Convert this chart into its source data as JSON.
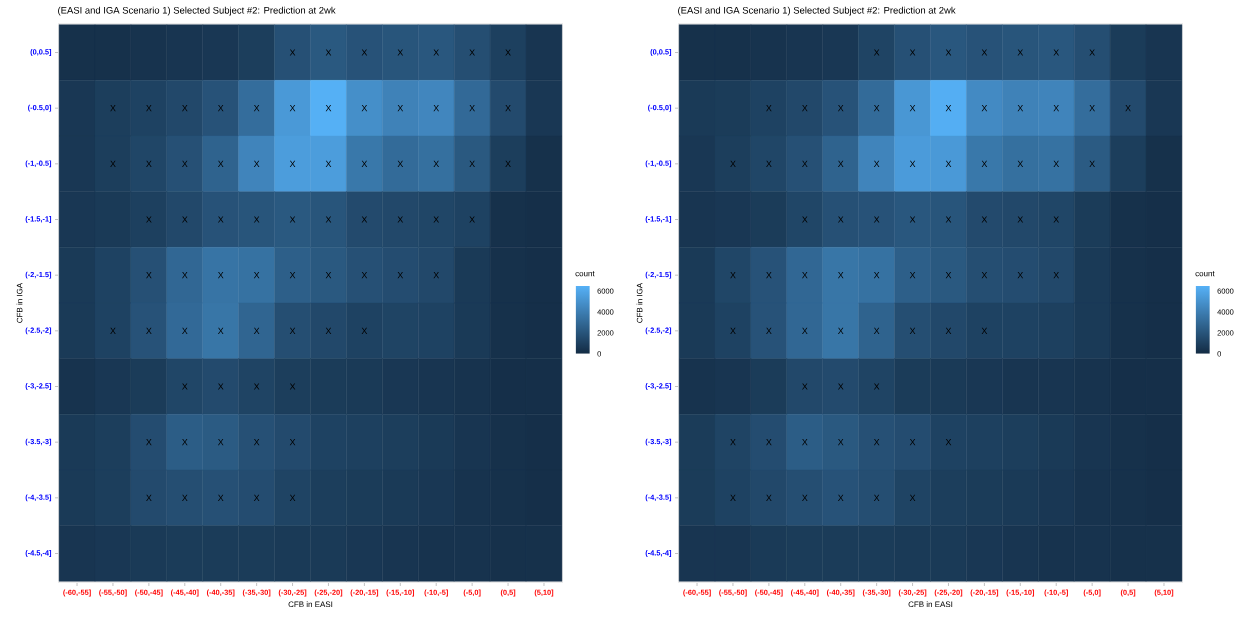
{
  "chart_data": [
    {
      "type": "heatmap",
      "title": "(EASI and IGA Scenario 1) Selected Subject #2: Prediction at 2wk",
      "xlabel": "CFB in EASI",
      "ylabel": "CFB in IGA",
      "clabel": "count",
      "categories": [
        "(-60,-55]",
        "(-55,-50]",
        "(-50,-45]",
        "(-45,-40]",
        "(-40,-35]",
        "(-35,-30]",
        "(-30,-25]",
        "(-25,-20]",
        "(-20,-15]",
        "(-15,-10]",
        "(-10,-5]",
        "(-5,0]",
        "(0,5]",
        "(5,10]"
      ],
      "y_categories": [
        "(0,0.5]",
        "(-0.5,0]",
        "(-1,-0.5]",
        "(-1.5,-1]",
        "(-2,-1.5]",
        "(-2.5,-2]",
        "(-3,-2.5]",
        "(-3.5,-3]",
        "(-4,-3.5]",
        "(-4.5,-4]"
      ],
      "cells": [
        [
          300,
          300,
          400,
          500,
          600,
          900,
          1800,
          2200,
          1900,
          2000,
          2100,
          1700,
          1000,
          500
        ],
        [
          600,
          900,
          1100,
          1400,
          1900,
          3200,
          5300,
          6400,
          4800,
          4200,
          4400,
          3000,
          1500,
          600
        ],
        [
          600,
          900,
          1300,
          1800,
          2700,
          4300,
          5500,
          5500,
          3700,
          3100,
          3300,
          2200,
          900,
          300
        ],
        [
          600,
          700,
          1000,
          1400,
          1900,
          2000,
          2200,
          2000,
          1500,
          1400,
          1300,
          1100,
          300,
          200
        ],
        [
          700,
          1100,
          1800,
          2900,
          3500,
          3400,
          2500,
          2200,
          1800,
          1600,
          1400,
          700,
          300,
          200
        ],
        [
          700,
          1100,
          1900,
          3000,
          3600,
          2800,
          1700,
          1400,
          1100,
          1200,
          1100,
          700,
          300,
          200
        ],
        [
          400,
          600,
          800,
          1300,
          1500,
          1200,
          900,
          800,
          700,
          600,
          500,
          400,
          200,
          200
        ],
        [
          700,
          900,
          1600,
          2400,
          2300,
          1800,
          1500,
          1100,
          1000,
          900,
          700,
          500,
          300,
          200
        ],
        [
          700,
          900,
          1500,
          1700,
          1800,
          1600,
          1200,
          900,
          800,
          700,
          600,
          400,
          300,
          200
        ],
        [
          500,
          600,
          700,
          800,
          800,
          800,
          700,
          700,
          600,
          500,
          400,
          400,
          300,
          300
        ]
      ],
      "cell_labels": [
        [
          null,
          null,
          null,
          null,
          null,
          null,
          "X",
          "X",
          "X",
          "X",
          "X",
          "X",
          "X",
          null
        ],
        [
          null,
          "X",
          "X",
          "X",
          "X",
          "X",
          "X",
          "X",
          "X",
          "X",
          "X",
          "X",
          "X",
          null
        ],
        [
          null,
          "X",
          "X",
          "X",
          "X",
          "X",
          "X",
          "X",
          "X",
          "X",
          "X",
          "X",
          "X",
          null
        ],
        [
          null,
          null,
          "X",
          "X",
          "X",
          "X",
          "X",
          "X",
          "X",
          "X",
          "X",
          "X",
          null,
          null
        ],
        [
          null,
          null,
          "X",
          "X",
          "X",
          "X",
          "X",
          "X",
          "X",
          "X",
          "X",
          null,
          null,
          null
        ],
        [
          null,
          "X",
          "X",
          "X",
          "X",
          "X",
          "X",
          "X",
          "X",
          null,
          null,
          null,
          null,
          null
        ],
        [
          null,
          null,
          null,
          "X",
          "X",
          "X",
          "X",
          null,
          null,
          null,
          null,
          null,
          null,
          null
        ],
        [
          null,
          null,
          "X",
          "X",
          "X",
          "X",
          "X",
          null,
          null,
          null,
          null,
          null,
          null,
          null
        ],
        [
          null,
          null,
          "X",
          "X",
          "X",
          "X",
          "X",
          null,
          null,
          null,
          null,
          null,
          null,
          null
        ],
        [
          null,
          null,
          null,
          null,
          null,
          null,
          null,
          null,
          null,
          null,
          null,
          null,
          null,
          null
        ]
      ],
      "clim": [
        0,
        6500
      ],
      "cticks": [
        0,
        2000,
        4000,
        6000
      ],
      "colors": [
        "#132b43",
        "#56b1f7"
      ]
    },
    {
      "type": "heatmap",
      "title": "(EASI and IGA Scenario 1) Selected Subject #2: Prediction at 2wk",
      "xlabel": "CFB in EASI",
      "ylabel": "CFB in IGA",
      "clabel": "count",
      "categories": [
        "(-60,-55]",
        "(-55,-50]",
        "(-50,-45]",
        "(-45,-40]",
        "(-40,-35]",
        "(-35,-30]",
        "(-30,-25]",
        "(-25,-20]",
        "(-20,-15]",
        "(-15,-10]",
        "(-10,-5]",
        "(-5,0]",
        "(0,5]",
        "(5,10]"
      ],
      "y_categories": [
        "(0,0.5]",
        "(-0.5,0]",
        "(-1,-0.5]",
        "(-1.5,-1]",
        "(-2,-1.5]",
        "(-2.5,-2]",
        "(-3,-2.5]",
        "(-3.5,-3]",
        "(-4,-3.5]",
        "(-4.5,-4]"
      ],
      "cells": [
        [
          300,
          300,
          400,
          500,
          600,
          1200,
          1800,
          2100,
          1900,
          2000,
          2100,
          1700,
          800,
          500
        ],
        [
          700,
          800,
          1100,
          1400,
          1900,
          3100,
          5200,
          6300,
          4600,
          4200,
          4300,
          3200,
          1500,
          600
        ],
        [
          600,
          900,
          1300,
          1800,
          2700,
          4300,
          5400,
          5300,
          3700,
          3300,
          3400,
          2300,
          900,
          300
        ],
        [
          500,
          600,
          800,
          1300,
          1800,
          1900,
          2100,
          2000,
          1500,
          1400,
          1300,
          800,
          300,
          200
        ],
        [
          700,
          1300,
          1900,
          2900,
          3600,
          3400,
          2500,
          2200,
          1700,
          1600,
          1400,
          700,
          300,
          200
        ],
        [
          700,
          1100,
          1900,
          2900,
          3600,
          2700,
          1700,
          1400,
          1100,
          1100,
          1000,
          700,
          300,
          200
        ],
        [
          400,
          500,
          800,
          1400,
          1500,
          1200,
          800,
          700,
          600,
          500,
          500,
          400,
          200,
          200
        ],
        [
          800,
          1200,
          1600,
          2400,
          2200,
          1800,
          1600,
          1100,
          1000,
          900,
          700,
          500,
          300,
          200
        ],
        [
          800,
          1100,
          1400,
          1700,
          1900,
          1700,
          1200,
          900,
          800,
          700,
          600,
          400,
          300,
          200
        ],
        [
          500,
          500,
          700,
          800,
          800,
          800,
          700,
          700,
          600,
          500,
          400,
          400,
          300,
          300
        ]
      ],
      "cell_labels": [
        [
          null,
          null,
          null,
          null,
          null,
          "X",
          "X",
          "X",
          "X",
          "X",
          "X",
          "X",
          null,
          null
        ],
        [
          null,
          null,
          "X",
          "X",
          "X",
          "X",
          "X",
          "X",
          "X",
          "X",
          "X",
          "X",
          "X",
          null
        ],
        [
          null,
          "X",
          "X",
          "X",
          "X",
          "X",
          "X",
          "X",
          "X",
          "X",
          "X",
          "X",
          null,
          null
        ],
        [
          null,
          null,
          null,
          "X",
          "X",
          "X",
          "X",
          "X",
          "X",
          "X",
          "X",
          null,
          null,
          null
        ],
        [
          null,
          "X",
          "X",
          "X",
          "X",
          "X",
          "X",
          "X",
          "X",
          "X",
          "X",
          null,
          null,
          null
        ],
        [
          null,
          "X",
          "X",
          "X",
          "X",
          "X",
          "X",
          "X",
          "X",
          null,
          null,
          null,
          null,
          null
        ],
        [
          null,
          null,
          null,
          "X",
          "X",
          "X",
          null,
          null,
          null,
          null,
          null,
          null,
          null,
          null
        ],
        [
          null,
          "X",
          "X",
          "X",
          "X",
          "X",
          "X",
          "X",
          null,
          null,
          null,
          null,
          null,
          null
        ],
        [
          null,
          "X",
          "X",
          "X",
          "X",
          "X",
          "X",
          null,
          null,
          null,
          null,
          null,
          null,
          null
        ],
        [
          null,
          null,
          null,
          null,
          null,
          null,
          null,
          null,
          null,
          null,
          null,
          null,
          null,
          null
        ]
      ],
      "clim": [
        0,
        6500
      ],
      "cticks": [
        0,
        2000,
        4000,
        6000
      ],
      "colors": [
        "#132b43",
        "#56b1f7"
      ]
    }
  ]
}
